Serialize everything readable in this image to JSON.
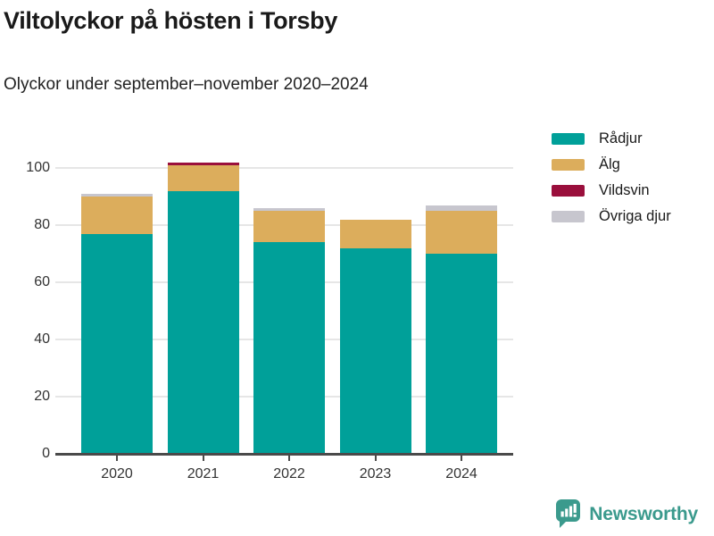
{
  "header": {
    "title": "Viltolyckor på hösten i Torsby",
    "subtitle": "Olyckor under september–november 2020–2024"
  },
  "chart_data": {
    "type": "bar",
    "stacked": true,
    "title": "Viltolyckor på hösten i Torsby",
    "subtitle": "Olyckor under september–november 2020–2024",
    "categories": [
      "2020",
      "2021",
      "2022",
      "2023",
      "2024"
    ],
    "series": [
      {
        "name": "Rådjur",
        "color": "#00a099",
        "values": [
          77,
          92,
          74,
          72,
          70
        ]
      },
      {
        "name": "Älg",
        "color": "#dcad5c",
        "values": [
          13,
          9,
          11,
          10,
          15
        ]
      },
      {
        "name": "Vildsvin",
        "color": "#9a0f3c",
        "values": [
          0,
          1,
          0,
          0,
          0
        ]
      },
      {
        "name": "Övriga djur",
        "color": "#c7c6ce",
        "values": [
          1,
          0,
          1,
          0,
          2
        ]
      }
    ],
    "totals": [
      91,
      102,
      86,
      82,
      87
    ],
    "yticks": [
      0,
      20,
      40,
      60,
      80,
      100
    ],
    "ylim": [
      0,
      115
    ],
    "grid": true,
    "legend_position": "right",
    "stack_order": "reverse-legend"
  },
  "colors": {
    "axis": "#4a4a4a",
    "grid": "#e6e6e6",
    "text": "#333333",
    "brand": "#3b9a8d"
  },
  "footer": {
    "brand": "Newsworthy",
    "icon": "bar-chart-speech-bubble-icon"
  }
}
